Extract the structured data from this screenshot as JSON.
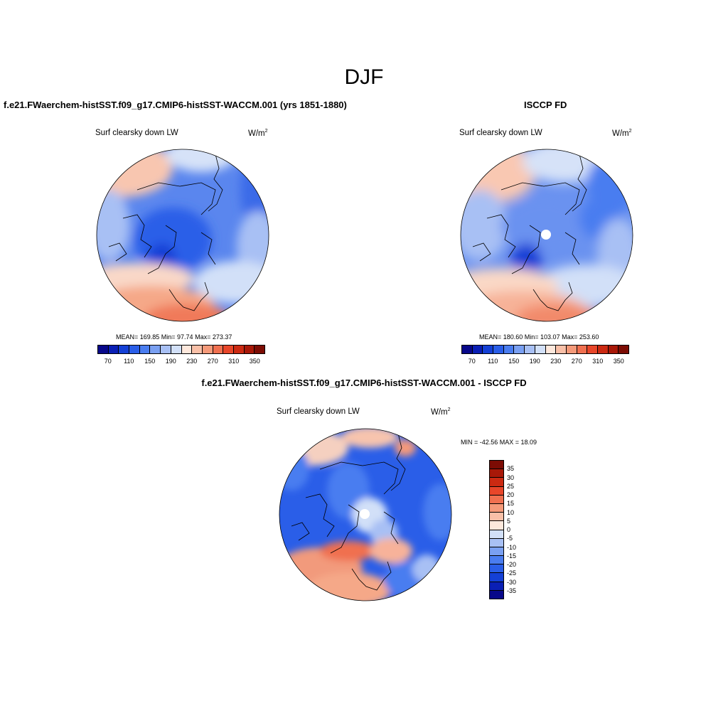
{
  "title": "DJF",
  "panel1": {
    "title": "f.e21.FWaerchem-histSST.f09_g17.CMIP6-histSST-WACCM.001 (yrs 1851-1880)",
    "variable": "Surf clearsky down LW",
    "units_base": "W/m",
    "units_exp": "2",
    "stats": "MEAN= 169.85  Min=  97.74  Max= 273.37"
  },
  "panel2": {
    "title": "ISCCP FD",
    "variable": "Surf clearsky down LW",
    "units_base": "W/m",
    "units_exp": "2",
    "stats": "MEAN= 180.60  Min= 103.07  Max= 253.60"
  },
  "panel3": {
    "title": "f.e21.FWaerchem-histSST.f09_g17.CMIP6-histSST-WACCM.001 - ISCCP FD",
    "variable": "Surf clearsky down LW",
    "units_base": "W/m",
    "units_exp": "2",
    "stats": "MIN = -42.56 MAX =  18.09"
  },
  "colorbar_abs": {
    "colors": [
      "#08088a",
      "#0a1fb5",
      "#1440d6",
      "#2a5ee8",
      "#4a7df0",
      "#7aa0f2",
      "#a8c0f4",
      "#d2e0f8",
      "#fde8dc",
      "#f9c0a8",
      "#f59a7a",
      "#f07050",
      "#e8462a",
      "#cc2a12",
      "#a81808",
      "#7c0c04"
    ],
    "tick_labels": [
      "70",
      "110",
      "150",
      "190",
      "230",
      "270",
      "310",
      "350"
    ]
  },
  "colorbar_diff": {
    "colors": [
      "#7c0c04",
      "#a81808",
      "#cc2a12",
      "#e8462a",
      "#f07050",
      "#f59a7a",
      "#f9c0a8",
      "#fde8dc",
      "#d2e0f8",
      "#a8c0f4",
      "#7aa0f2",
      "#4a7df0",
      "#2a5ee8",
      "#1440d6",
      "#0a1fb5",
      "#08088a"
    ],
    "tick_labels": [
      "35",
      "30",
      "25",
      "20",
      "15",
      "10",
      "5",
      "0",
      "-5",
      "-10",
      "-15",
      "-20",
      "-25",
      "-30",
      "-35"
    ]
  }
}
